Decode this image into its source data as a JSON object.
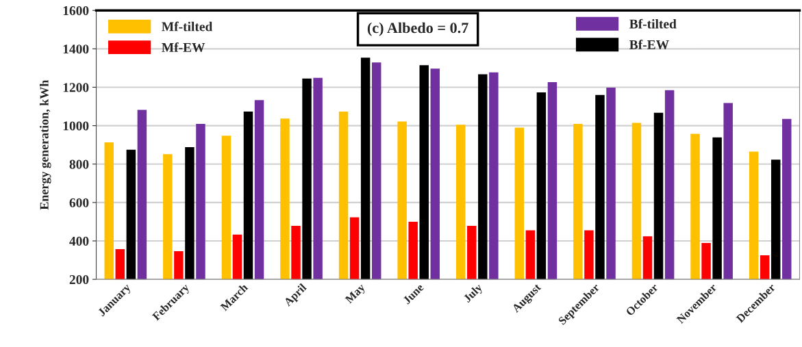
{
  "chart_data": {
    "type": "bar",
    "ylabel": "Energy generation, kWh",
    "categories": [
      "January",
      "February",
      "March",
      "April",
      "May",
      "June",
      "July",
      "August",
      "September",
      "October",
      "November",
      "December"
    ],
    "series": [
      {
        "name": "Mf-tilted",
        "color": "#ffc000",
        "values": [
          913,
          852,
          948,
          1037,
          1073,
          1022,
          1005,
          990,
          1009,
          1015,
          958,
          865
        ]
      },
      {
        "name": "Mf-EW",
        "color": "#ff0000",
        "values": [
          357,
          347,
          433,
          478,
          523,
          500,
          478,
          455,
          455,
          424,
          389,
          325
        ]
      },
      {
        "name": "Bf-EW",
        "color": "#000000",
        "values": [
          875,
          888,
          1073,
          1245,
          1354,
          1315,
          1268,
          1173,
          1160,
          1067,
          939,
          823
        ]
      },
      {
        "name": "Bf-tilted",
        "color": "#7030a0",
        "values": [
          1082,
          1009,
          1133,
          1249,
          1329,
          1297,
          1277,
          1227,
          1198,
          1185,
          1118,
          1035
        ]
      }
    ],
    "ylim": [
      200,
      1600
    ],
    "yticks": [
      200,
      400,
      600,
      800,
      1000,
      1200,
      1400,
      1600
    ],
    "grid": "y",
    "legend": "top",
    "annotations": [
      "(c) Albedo = 0.7"
    ]
  }
}
